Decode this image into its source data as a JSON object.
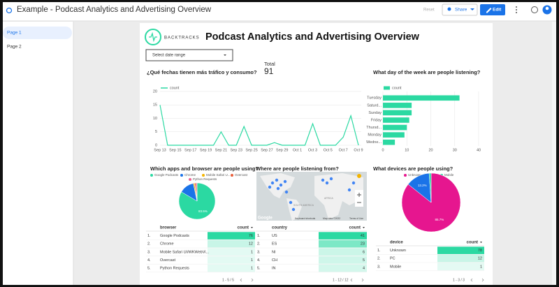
{
  "topbar": {
    "title": "Example - Podcast Analytics and Advertising Overview",
    "reset": "Reset",
    "share": "Share",
    "edit": "Edit"
  },
  "sidebar": {
    "pages": [
      "Page 1",
      "Page 2"
    ]
  },
  "report": {
    "logo": "BACKTRACKS",
    "title": "Podcast Analytics and Advertising Overview",
    "date_range": "Select date range",
    "scorecard": {
      "label": "Total",
      "value": 91
    }
  },
  "charts": [
    {
      "type": "line",
      "title": "¿Qué fechas tienen más tráfico y consumo?",
      "categories": [
        "Sep 13",
        null,
        "Sep 15",
        null,
        "Sep 17",
        null,
        "Sep 19",
        null,
        "Sep 21",
        null,
        "Sep 23",
        null,
        "Sep 25",
        null,
        "Sep 27",
        null,
        "Sep 29",
        null,
        "Oct 1",
        null,
        "Oct 3",
        null,
        "Oct 5",
        null,
        "Oct 7",
        null,
        "Oct 9"
      ],
      "series": [
        {
          "name": "count",
          "color": "#2bd9a2",
          "values": [
            15,
            0,
            0,
            0,
            0,
            0,
            0,
            0,
            5,
            0,
            0,
            7,
            0,
            0,
            0,
            1,
            0,
            0,
            0,
            0,
            8,
            0,
            0,
            0,
            3,
            11,
            0
          ]
        }
      ],
      "ylim": [
        0,
        20
      ],
      "yticks": [
        0,
        5,
        10,
        15,
        20
      ],
      "grid": true
    },
    {
      "type": "bar",
      "orientation": "horizontal",
      "title": "What day of the week are people listening?",
      "categories": [
        "Tuesday",
        "Saturd...",
        "Sunday",
        "Friday",
        "Thursd...",
        "Monday",
        "Wedne..."
      ],
      "series": [
        {
          "name": "count",
          "color": "#2bd9a2",
          "values": [
            32,
            12,
            12,
            11,
            10,
            9,
            5
          ]
        }
      ],
      "xlim": [
        0,
        40
      ],
      "xticks": [
        0,
        10,
        20,
        30,
        40
      ],
      "grid": true
    },
    {
      "type": "pie",
      "title": "Which apps and browser are people using?",
      "categories": [
        "Google Podcasts",
        "Chrome",
        "Mobile Safari U...",
        "Overcast",
        "Python Requests"
      ],
      "colors": [
        "#2bd9a2",
        "#1a73e8",
        "#f4b400",
        "#e8603c",
        "#f06292"
      ],
      "values": [
        83.5,
        13.2,
        1.1,
        1.1,
        1.1
      ],
      "value_labels": [
        "83.5%",
        null,
        null,
        null,
        null
      ]
    },
    {
      "type": "pie",
      "title": "What devices are people using?",
      "categories": [
        "Unknown",
        "PC",
        "Mobile"
      ],
      "colors": [
        "#e6168f",
        "#1a73e8",
        "#2bd9a2"
      ],
      "values": [
        85.7,
        13.2,
        1.1
      ],
      "value_labels": [
        "85.7%",
        "13.2%",
        null
      ]
    }
  ],
  "map": {
    "title": "Where are people listening from?",
    "google": "Google",
    "attribution": [
      "Keyboard shortcuts",
      "Map data ©2022",
      "Terms of Use"
    ],
    "regions": [
      "AFRICA",
      "SOUTH AMERICA"
    ]
  },
  "tables": [
    {
      "headers": [
        "browser",
        "count"
      ],
      "rows": [
        [
          "1.",
          "Google Podcasts",
          76
        ],
        [
          "2.",
          "Chrome",
          12
        ],
        [
          "3.",
          "Mobile Safari UI/WKWebVi...",
          1
        ],
        [
          "4.",
          "Overcast",
          1
        ],
        [
          "5.",
          "Python Requests",
          1
        ]
      ],
      "pagination": "1 - 5 / 5"
    },
    {
      "headers": [
        "country",
        "count"
      ],
      "rows": [
        [
          "1.",
          "US",
          41
        ],
        [
          "2.",
          "ES",
          23
        ],
        [
          "3.",
          "NI",
          6
        ],
        [
          "4.",
          "CH",
          5
        ],
        [
          "5.",
          "IN",
          4
        ]
      ],
      "pagination": "1 - 12 / 12"
    },
    {
      "headers": [
        "device",
        "count"
      ],
      "rows": [
        [
          "1.",
          "Unknown",
          78
        ],
        [
          "2.",
          "PC",
          12
        ],
        [
          "3.",
          "Mobile",
          1
        ]
      ],
      "pagination": "1 - 3 / 3"
    }
  ]
}
